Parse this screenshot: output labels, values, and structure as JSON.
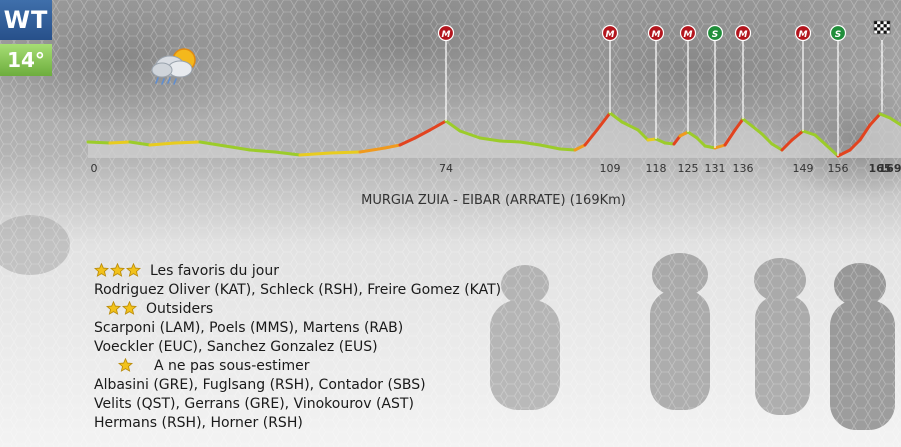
{
  "badges": {
    "category": "WT",
    "temperature": "14°"
  },
  "weather": {
    "icon": "cloud-sun-rain-icon"
  },
  "stage": {
    "title": "MURGIA ZUIA - EIBAR (ARRATE) (169Km)"
  },
  "profile": {
    "km_labels": [
      "0",
      "74",
      "109",
      "118",
      "125",
      "131",
      "136",
      "149",
      "156",
      "165",
      "169"
    ],
    "markers": [
      {
        "km": 74,
        "label": "M",
        "color": "#b3151d"
      },
      {
        "km": 109,
        "label": "M",
        "color": "#b3151d"
      },
      {
        "km": 118,
        "label": "M",
        "color": "#b3151d"
      },
      {
        "km": 125,
        "label": "M",
        "color": "#b3151d"
      },
      {
        "km": 131,
        "label": "S",
        "color": "#1f8e3a"
      },
      {
        "km": 136,
        "label": "M",
        "color": "#b3151d"
      },
      {
        "km": 149,
        "label": "M",
        "color": "#b3151d"
      },
      {
        "km": 156,
        "label": "S",
        "color": "#1f8e3a"
      }
    ],
    "finish_icon": "checkered-flag-icon"
  },
  "favorites": {
    "label": "Les favoris du jour",
    "stars": 3,
    "riders": [
      "Rodriguez Oliver (KAT), Schleck (RSH), Freire Gomez (KAT)"
    ]
  },
  "outsiders": {
    "label": "Outsiders",
    "stars": 2,
    "riders": [
      "Scarponi (LAM), Poels (MMS), Martens (RAB)",
      "Voeckler (EUC), Sanchez Gonzalez (EUS)"
    ]
  },
  "underrated": {
    "label": "A ne pas sous-estimer",
    "stars": 1,
    "riders": [
      "Albasini (GRE), Fuglsang (RSH), Contador  (SBS)",
      "Velits (QST), Gerrans (GRE), Vinokourov (AST)",
      "Hermans (RSH), Horner (RSH)"
    ]
  }
}
